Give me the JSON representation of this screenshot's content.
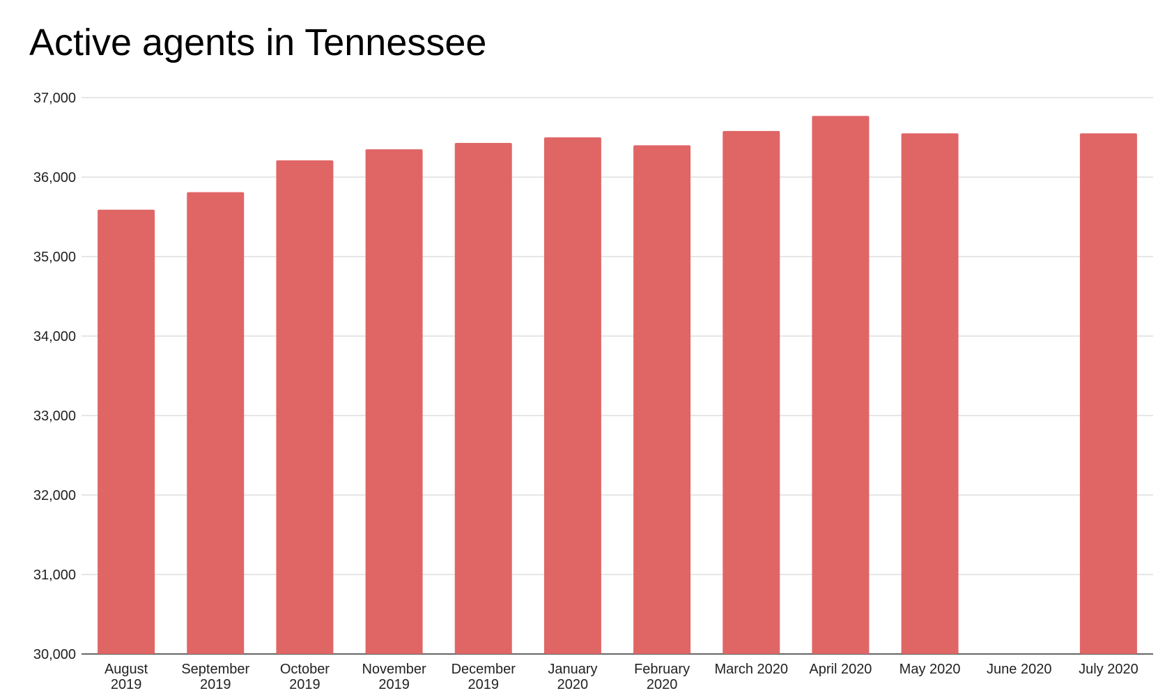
{
  "chart_data": {
    "type": "bar",
    "title": "Active agents in Tennessee",
    "xlabel": "",
    "ylabel": "",
    "ylim": [
      30000,
      37000
    ],
    "yticks": [
      30000,
      31000,
      32000,
      33000,
      34000,
      35000,
      36000,
      37000
    ],
    "ytick_labels": [
      "30,000",
      "31,000",
      "32,000",
      "33,000",
      "34,000",
      "35,000",
      "36,000",
      "37,000"
    ],
    "grid": true,
    "legend": "none",
    "bar_color": "#e06666",
    "categories": [
      [
        "August",
        "2019"
      ],
      [
        "September",
        "2019"
      ],
      [
        "October",
        "2019"
      ],
      [
        "November",
        "2019"
      ],
      [
        "December",
        "2019"
      ],
      [
        "January",
        "2020"
      ],
      [
        "February",
        "2020"
      ],
      [
        "March 2020"
      ],
      [
        "April 2020"
      ],
      [
        "May 2020"
      ],
      [
        "June 2020"
      ],
      [
        "July 2020"
      ]
    ],
    "values": [
      35590,
      35810,
      36210,
      36350,
      36430,
      36500,
      36400,
      36580,
      36770,
      36550,
      null,
      36550
    ]
  }
}
